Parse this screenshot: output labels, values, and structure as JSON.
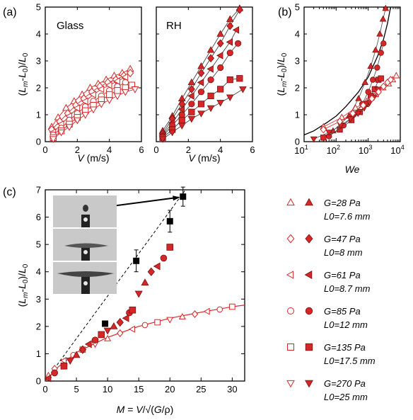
{
  "colors": {
    "red": "#d62728",
    "black": "#000000",
    "photo_bg": "#c6c6c6"
  },
  "panel_labels": {
    "a": "(a)",
    "b": "(b)",
    "c": "(c)"
  },
  "panel_titles": {
    "glass": "Glass",
    "rh": "RH"
  },
  "axes": {
    "a_ylabel": "(L_m-L_0)/L_0",
    "a_xlabel": "V (m/s)",
    "rh_xlabel": "V (m/s)",
    "b_ylabel": "(L_m-L_0)/L_0",
    "b_xlabel": "We",
    "c_ylabel": "(L_m-L_0)/L_0",
    "c_xlabel": "M = V/√(G/ρ)"
  },
  "ticks": {
    "a_x": [
      "0",
      "2",
      "4",
      "6"
    ],
    "a_y": [
      "0",
      "1",
      "2",
      "3",
      "4",
      "5"
    ],
    "rh_x": [
      "0",
      "2",
      "4",
      "6"
    ],
    "b_x_base": "10",
    "b_x_exp": [
      "1",
      "2",
      "3",
      "4"
    ],
    "b_y": [
      "0",
      "1",
      "2",
      "3",
      "4",
      "5"
    ],
    "c_x": [
      "0",
      "5",
      "10",
      "15",
      "20",
      "25",
      "30"
    ],
    "c_y": [
      "0",
      "1",
      "2",
      "3",
      "4",
      "5",
      "6",
      "7"
    ]
  },
  "legend": [
    {
      "marker": "triangle-up",
      "g": "G=28 Pa",
      "l0": "L0=7.6 mm"
    },
    {
      "marker": "diamond",
      "g": "G=47 Pa",
      "l0": "L0=8 mm"
    },
    {
      "marker": "triangle-left",
      "g": "G=61 Pa",
      "l0": "L0=8.7 mm"
    },
    {
      "marker": "circle",
      "g": "G=85 Pa",
      "l0": "L0=12 mm"
    },
    {
      "marker": "square",
      "g": "G=135 Pa",
      "l0": "L0=17.5 mm"
    },
    {
      "marker": "triangle-down",
      "g": "G=270 Pa",
      "l0": "L0=25 mm"
    }
  ],
  "chart_data": [
    {
      "id": "glass",
      "type": "scatter",
      "title": "Glass",
      "xlabel": "V (m/s)",
      "ylabel": "(L_m-L_0)/L_0",
      "xlim": [
        0,
        6
      ],
      "ylim": [
        0,
        5
      ],
      "marker_fill": "open",
      "series": [
        {
          "marker": "triangle-up",
          "x": [
            0.4,
            0.8,
            1.3,
            1.8,
            2.3,
            2.8,
            3.3,
            3.8,
            4.3,
            4.8,
            5.3
          ],
          "y": [
            0.55,
            0.9,
            1.25,
            1.5,
            1.75,
            2.0,
            2.15,
            2.3,
            2.45,
            2.55,
            2.7
          ]
        },
        {
          "marker": "diamond",
          "x": [
            0.4,
            0.9,
            1.4,
            1.9,
            2.4,
            2.9,
            3.4,
            3.9,
            4.4,
            4.9,
            5.3
          ],
          "y": [
            0.45,
            0.75,
            1.05,
            1.35,
            1.6,
            1.85,
            2.05,
            2.2,
            2.3,
            2.45,
            2.55
          ]
        },
        {
          "marker": "triangle-left",
          "x": [
            0.5,
            1.0,
            1.5,
            2.0,
            2.5,
            3.0,
            3.5,
            4.0,
            4.5,
            5.0
          ],
          "y": [
            0.35,
            0.65,
            0.95,
            1.25,
            1.5,
            1.75,
            1.95,
            2.1,
            2.25,
            2.4
          ]
        },
        {
          "marker": "circle",
          "x": [
            0.5,
            1.0,
            1.5,
            2.0,
            2.5,
            3.0,
            3.5,
            4.0,
            4.5,
            5.0
          ],
          "y": [
            0.25,
            0.5,
            0.8,
            1.05,
            1.3,
            1.5,
            1.7,
            1.9,
            2.05,
            2.2
          ]
        },
        {
          "marker": "square",
          "x": [
            0.5,
            1.0,
            1.5,
            2.0,
            2.5,
            3.0,
            3.5,
            4.0,
            4.5,
            5.0,
            5.4
          ],
          "y": [
            0.15,
            0.4,
            0.65,
            0.9,
            1.15,
            1.35,
            1.55,
            1.75,
            1.9,
            2.0,
            2.1
          ]
        },
        {
          "marker": "triangle-down",
          "x": [
            0.5,
            1.0,
            1.5,
            2.0,
            2.5,
            3.0,
            3.5,
            4.0,
            4.5,
            5.0,
            5.6
          ],
          "y": [
            0.1,
            0.35,
            0.55,
            0.8,
            1.0,
            1.2,
            1.4,
            1.55,
            1.7,
            1.85,
            1.95
          ]
        }
      ]
    },
    {
      "id": "rh",
      "type": "scatter",
      "title": "RH",
      "xlabel": "V (m/s)",
      "xlim": [
        0,
        6
      ],
      "ylim": [
        0,
        5
      ],
      "marker_fill": "filled",
      "series": [
        {
          "marker": "triangle-up",
          "x": [
            0.4,
            1.0,
            1.6,
            2.2,
            2.8,
            3.4,
            4.0,
            4.6,
            5.2
          ],
          "y": [
            0.4,
            0.95,
            1.6,
            2.2,
            2.8,
            3.4,
            4.0,
            4.55,
            4.95
          ]
        },
        {
          "marker": "diamond",
          "x": [
            0.4,
            1.0,
            1.6,
            2.2,
            2.8,
            3.4,
            4.0,
            4.6,
            5.2
          ],
          "y": [
            0.3,
            0.85,
            1.4,
            1.95,
            2.55,
            3.1,
            3.65,
            4.3,
            4.9
          ]
        },
        {
          "marker": "triangle-left",
          "x": [
            0.4,
            1.0,
            1.6,
            2.2,
            2.8,
            3.4,
            4.0,
            4.6,
            5.0
          ],
          "y": [
            0.25,
            0.7,
            1.2,
            1.7,
            2.2,
            2.7,
            3.2,
            3.7,
            4.15
          ]
        },
        {
          "marker": "circle",
          "x": [
            0.4,
            1.0,
            1.6,
            2.2,
            2.8,
            3.4,
            4.0,
            4.6,
            5.1
          ],
          "y": [
            0.2,
            0.6,
            1.0,
            1.4,
            1.85,
            2.3,
            2.75,
            3.3,
            3.65
          ]
        },
        {
          "marker": "square",
          "x": [
            0.4,
            1.0,
            1.6,
            2.2,
            2.8,
            3.4,
            4.0,
            4.6,
            5.2
          ],
          "y": [
            0.15,
            0.45,
            0.8,
            1.1,
            1.4,
            1.7,
            1.95,
            2.3,
            2.35
          ]
        },
        {
          "marker": "triangle-down",
          "x": [
            0.4,
            1.0,
            1.6,
            2.2,
            2.8,
            3.4,
            4.0,
            4.6,
            5.4
          ],
          "y": [
            0.1,
            0.35,
            0.6,
            0.85,
            1.05,
            1.25,
            1.45,
            1.65,
            1.95
          ]
        }
      ]
    },
    {
      "id": "we",
      "type": "scatter",
      "xlabel": "We",
      "ylabel": "(L_m-L_0)/L_0",
      "xscale": "log",
      "xlim": [
        10,
        10000
      ],
      "ylim": [
        0,
        5
      ],
      "envelope_curve": {
        "x": [
          10,
          20,
          50,
          100,
          200,
          500,
          1000,
          2000,
          3000,
          4000,
          5000
        ],
        "y": [
          0.25,
          0.4,
          0.7,
          0.95,
          1.3,
          1.85,
          2.4,
          3.2,
          3.8,
          4.4,
          5.0
        ]
      },
      "groups": [
        {
          "marker": "triangle-up",
          "fill": "filled",
          "x": [
            80,
            250,
            500,
            800,
            1200,
            1700,
            2300,
            2900,
            3500
          ],
          "y": [
            0.4,
            0.95,
            1.6,
            2.2,
            2.8,
            3.4,
            4.0,
            4.55,
            4.95
          ]
        },
        {
          "marker": "triangle-up",
          "fill": "open",
          "x": [
            40,
            150,
            400,
            900,
            1700,
            2900,
            4300,
            5800,
            7500
          ],
          "y": [
            0.55,
            0.9,
            1.25,
            1.5,
            1.75,
            2.0,
            2.15,
            2.3,
            2.45
          ]
        },
        {
          "marker": "square",
          "fill": "filled",
          "x": [
            40,
            130,
            300,
            550,
            850,
            1200,
            1600,
            2100,
            2500
          ],
          "y": [
            0.15,
            0.45,
            0.8,
            1.1,
            1.4,
            1.7,
            1.95,
            2.3,
            2.35
          ]
        },
        {
          "marker": "circle",
          "fill": "filled",
          "x": [
            60,
            170,
            350,
            650,
            1000,
            1400,
            1900,
            2500,
            3000
          ],
          "y": [
            0.2,
            0.6,
            1.0,
            1.4,
            1.85,
            2.3,
            2.75,
            3.3,
            3.65
          ]
        },
        {
          "marker": "triangle-down",
          "fill": "filled",
          "x": [
            20,
            60,
            140,
            280,
            480,
            750,
            1100,
            1500,
            2000
          ],
          "y": [
            0.1,
            0.35,
            0.6,
            0.85,
            1.05,
            1.25,
            1.45,
            1.65,
            1.95
          ]
        },
        {
          "marker": "diamond",
          "fill": "open",
          "x": [
            40,
            130,
            330,
            700,
            1300,
            2100,
            3000,
            4000,
            5000
          ],
          "y": [
            0.45,
            0.75,
            1.05,
            1.35,
            1.6,
            1.85,
            2.05,
            2.2,
            2.3
          ]
        }
      ]
    },
    {
      "id": "mach",
      "type": "scatter",
      "xlabel": "M = V/√(G/ρ)",
      "ylabel": "(L_m-L_0)/L_0",
      "xlim": [
        0,
        32
      ],
      "ylim": [
        0,
        7
      ],
      "dashed_line": {
        "x": [
          0,
          22.5
        ],
        "y": [
          0,
          7.0
        ]
      },
      "fit_curve": {
        "x": [
          0,
          2,
          5,
          10,
          15,
          20,
          25,
          30,
          32
        ],
        "y": [
          0,
          0.5,
          1.05,
          1.6,
          2.0,
          2.3,
          2.52,
          2.72,
          2.78
        ]
      },
      "black_squares": {
        "x": [
          9.6,
          14.6,
          20.0,
          22.1
        ],
        "y": [
          2.1,
          4.4,
          5.85,
          6.75
        ],
        "err": [
          0,
          0.4,
          0.4,
          0.35
        ]
      },
      "open_points": {
        "x": [
          0.5,
          1.5,
          3,
          4.5,
          6,
          8,
          10,
          12,
          14,
          16,
          18,
          20,
          22,
          24,
          26,
          28,
          30
        ],
        "y": [
          0.2,
          0.45,
          0.75,
          0.95,
          1.15,
          1.35,
          1.55,
          1.75,
          1.9,
          2.05,
          2.15,
          2.25,
          2.35,
          2.45,
          2.55,
          2.62,
          2.72
        ]
      },
      "red_filled_points": {
        "x": [
          0.5,
          1.5,
          3,
          4,
          5,
          6,
          7,
          8,
          9,
          10,
          11,
          12,
          13,
          13.5,
          14,
          15,
          16,
          17,
          18,
          19,
          20
        ],
        "y": [
          0.1,
          0.3,
          0.55,
          0.75,
          0.95,
          1.15,
          1.35,
          1.5,
          1.7,
          1.85,
          2.0,
          2.15,
          2.3,
          2.5,
          2.6,
          3.2,
          3.6,
          4.0,
          4.2,
          4.5,
          4.9
        ]
      },
      "arrow": {
        "from_x": 3.9,
        "from_y": 6.2,
        "to_x": 22.1,
        "to_y": 6.75
      }
    }
  ]
}
